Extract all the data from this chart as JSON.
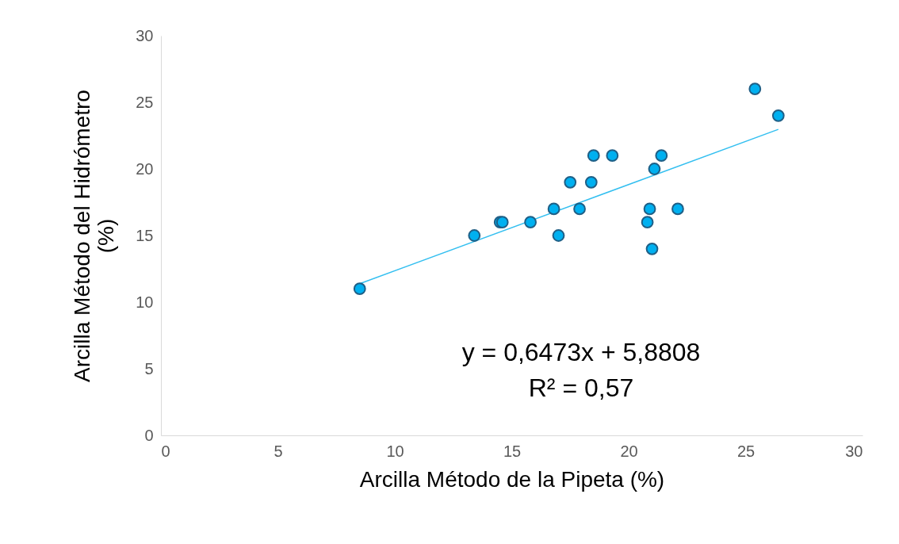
{
  "chart_data": {
    "type": "scatter",
    "xlabel": "Arcilla Método de la Pipeta (%)",
    "ylabel": "Arcilla Método del Hidrómetro (%)",
    "xlim": [
      0,
      30
    ],
    "ylim": [
      0,
      30
    ],
    "xticks": [
      0,
      5,
      10,
      15,
      20,
      25,
      30
    ],
    "yticks": [
      0,
      5,
      10,
      15,
      20,
      25,
      30
    ],
    "annotations": [
      "y = 0,6473x + 5,8808",
      "R² = 0,57"
    ],
    "series": [
      {
        "marker": "circle",
        "color": "#00b0f0",
        "x": [
          8.5,
          13.4,
          14.5,
          14.6,
          15.8,
          16.8,
          17.0,
          17.5,
          17.9,
          18.4,
          18.5,
          19.3,
          20.8,
          20.9,
          21.0,
          21.1,
          21.4,
          22.1,
          25.4,
          26.4
        ],
        "values": [
          11,
          15,
          16,
          16,
          16,
          17,
          15,
          19,
          17,
          19,
          21,
          21,
          16,
          17,
          14,
          20,
          21,
          17,
          26,
          24
        ]
      },
      {
        "type": "line",
        "color": "#33bff0",
        "x": [
          8.5,
          26.4
        ],
        "values": [
          11.38,
          22.97
        ]
      }
    ]
  }
}
